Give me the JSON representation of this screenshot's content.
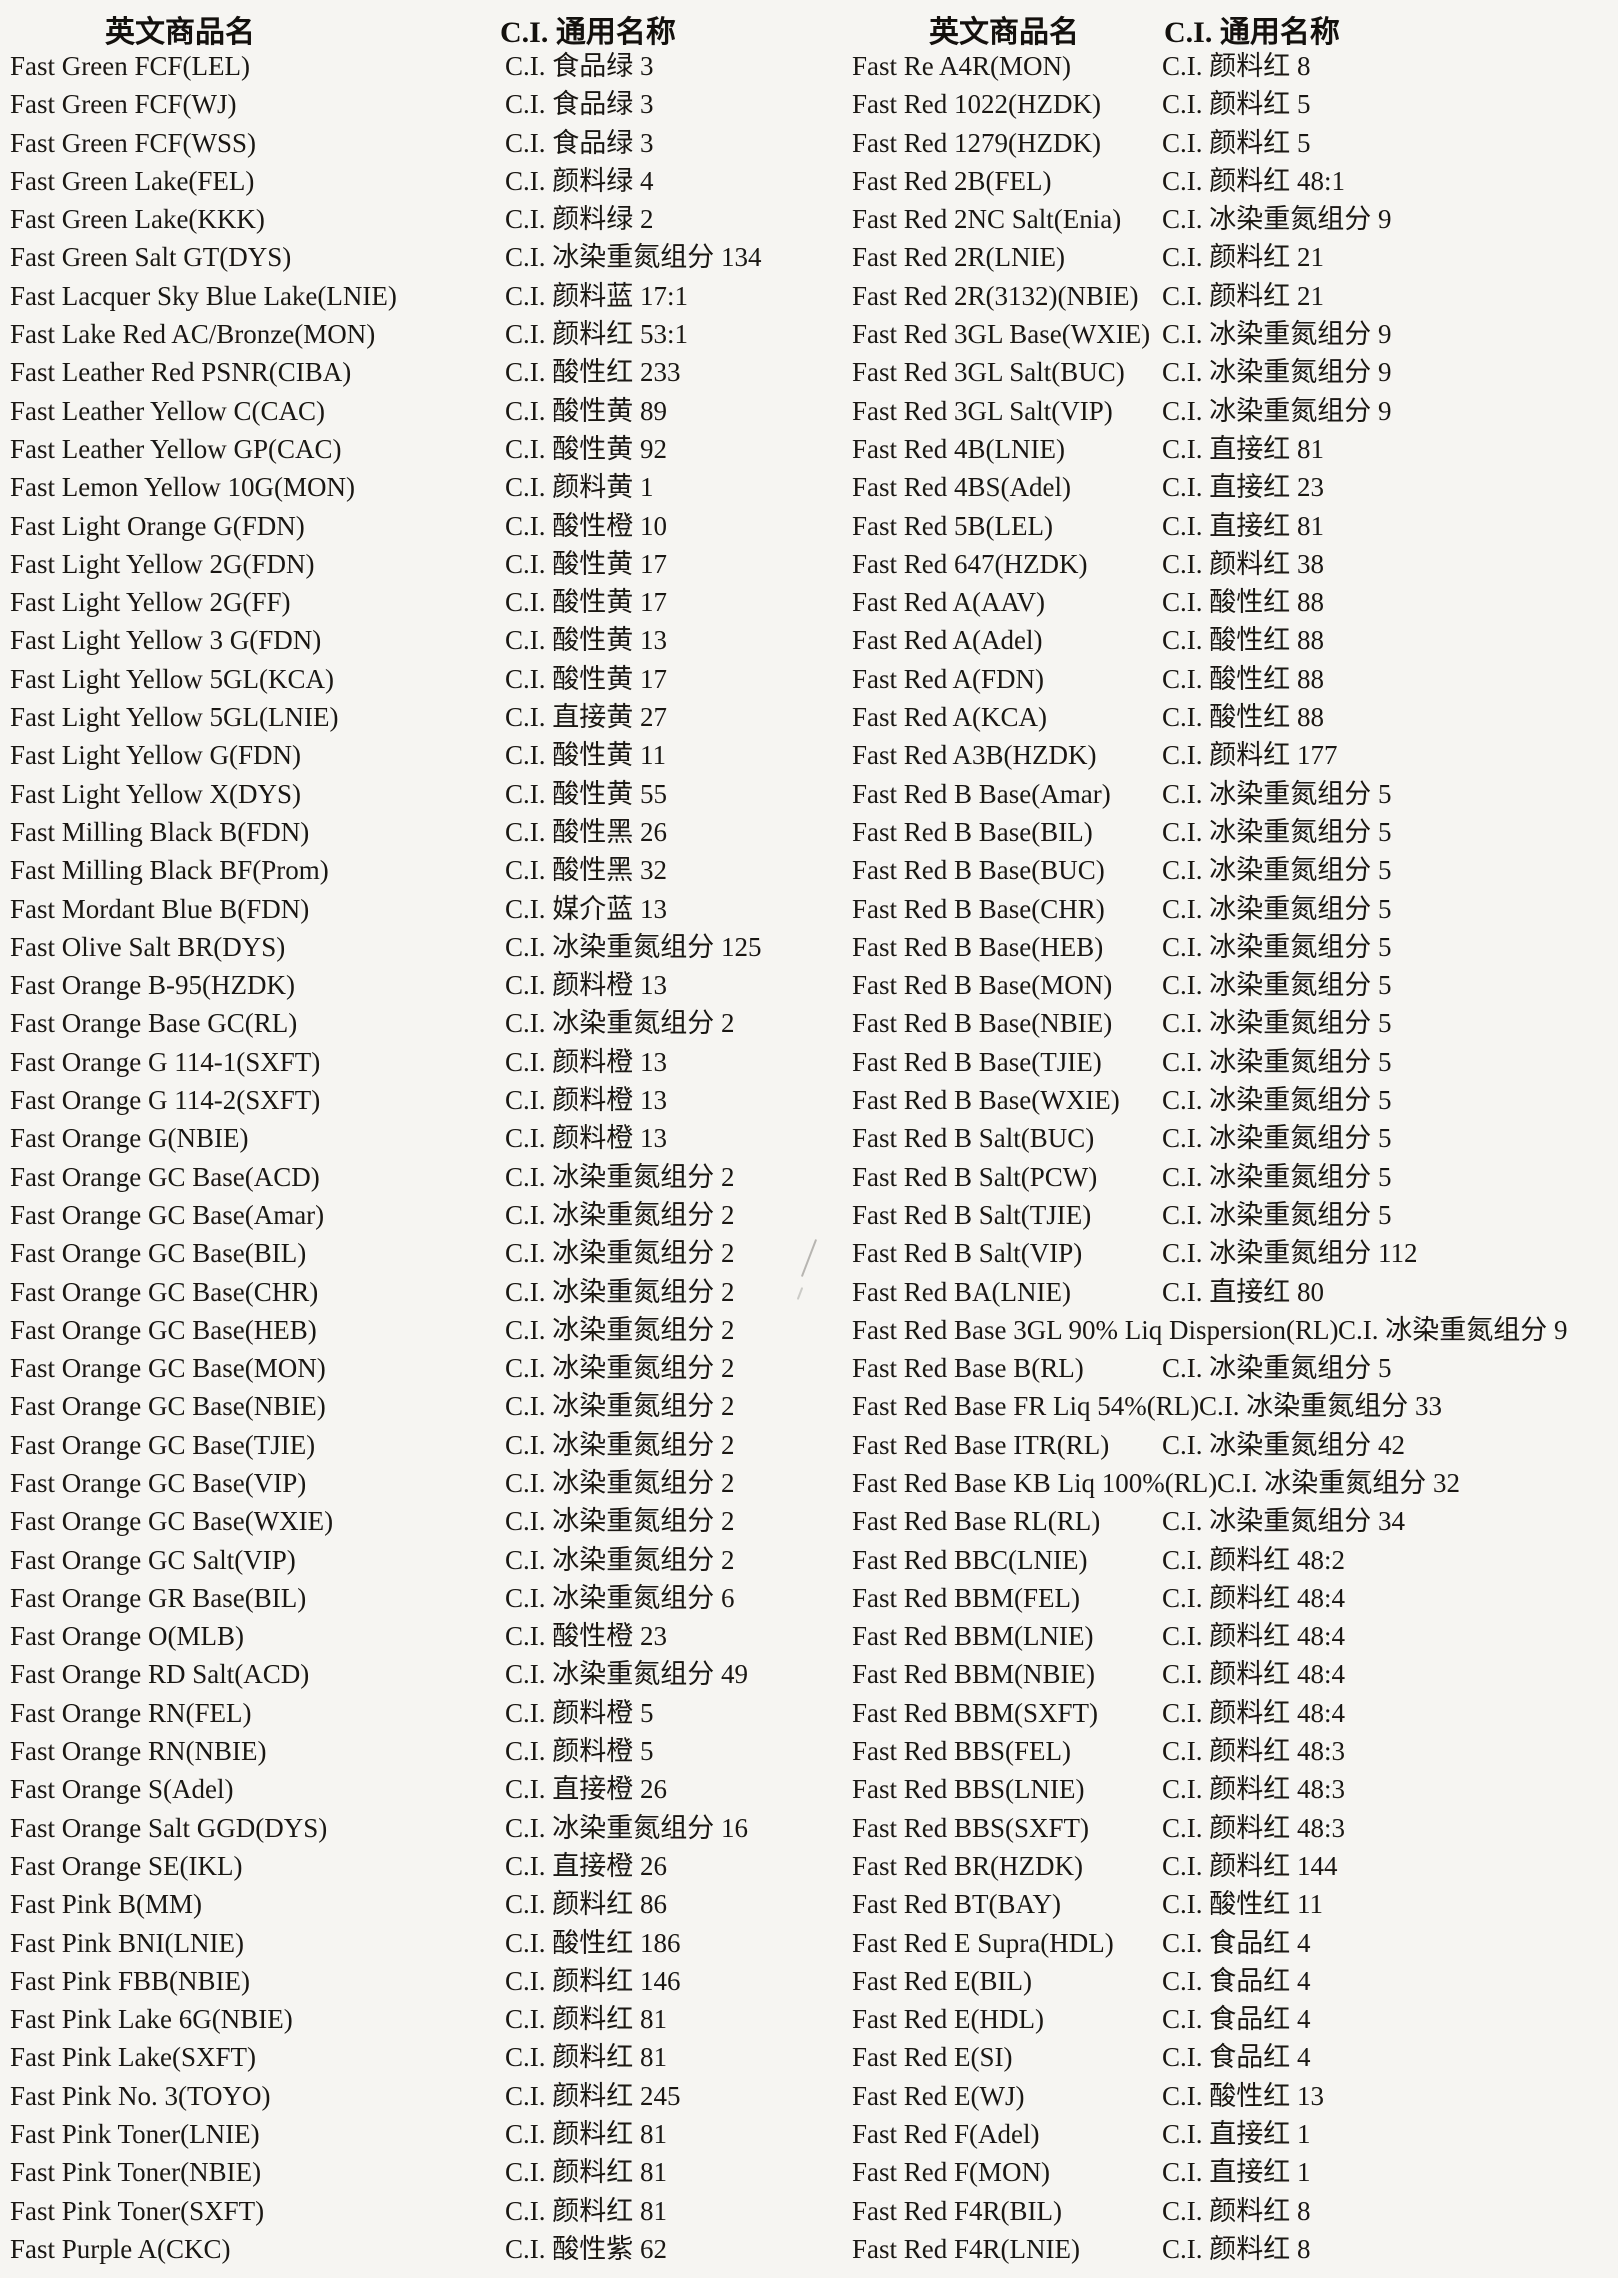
{
  "document": {
    "headers": {
      "english": "英文商品名",
      "ci": "C.I. 通用名称"
    },
    "left_rows": [
      {
        "name": "Fast Green FCF(LEL)",
        "ci": "C.I. 食品绿 3"
      },
      {
        "name": "Fast Green FCF(WJ)",
        "ci": "C.I. 食品绿 3"
      },
      {
        "name": "Fast Green FCF(WSS)",
        "ci": "C.I. 食品绿 3"
      },
      {
        "name": "Fast Green Lake(FEL)",
        "ci": "C.I. 颜料绿 4"
      },
      {
        "name": "Fast Green Lake(KKK)",
        "ci": "C.I. 颜料绿 2"
      },
      {
        "name": "Fast Green Salt GT(DYS)",
        "ci": "C.I. 冰染重氮组分 134"
      },
      {
        "name": "Fast Lacquer Sky Blue Lake(LNIE)",
        "ci": "C.I. 颜料蓝 17:1"
      },
      {
        "name": "Fast Lake Red AC/Bronze(MON)",
        "ci": "C.I. 颜料红 53:1"
      },
      {
        "name": "Fast Leather Red PSNR(CIBA)",
        "ci": "C.I. 酸性红 233"
      },
      {
        "name": "Fast Leather Yellow C(CAC)",
        "ci": "C.I. 酸性黄 89"
      },
      {
        "name": "Fast Leather Yellow GP(CAC)",
        "ci": "C.I. 酸性黄 92"
      },
      {
        "name": "Fast Lemon Yellow 10G(MON)",
        "ci": "C.I. 颜料黄 1"
      },
      {
        "name": "Fast Light Orange G(FDN)",
        "ci": "C.I. 酸性橙 10"
      },
      {
        "name": "Fast Light Yellow 2G(FDN)",
        "ci": "C.I. 酸性黄 17"
      },
      {
        "name": "Fast Light Yellow 2G(FF)",
        "ci": "C.I. 酸性黄 17"
      },
      {
        "name": "Fast Light Yellow 3 G(FDN)",
        "ci": "C.I. 酸性黄 13"
      },
      {
        "name": "Fast Light Yellow 5GL(KCA)",
        "ci": "C.I. 酸性黄 17"
      },
      {
        "name": "Fast Light Yellow 5GL(LNIE)",
        "ci": "C.I. 直接黄 27"
      },
      {
        "name": "Fast Light Yellow G(FDN)",
        "ci": "C.I. 酸性黄 11"
      },
      {
        "name": "Fast Light Yellow X(DYS)",
        "ci": "C.I. 酸性黄 55"
      },
      {
        "name": "Fast Milling Black B(FDN)",
        "ci": "C.I. 酸性黑 26"
      },
      {
        "name": "Fast Milling Black BF(Prom)",
        "ci": "C.I. 酸性黑 32"
      },
      {
        "name": "Fast Mordant Blue B(FDN)",
        "ci": "C.I. 媒介蓝 13"
      },
      {
        "name": "Fast Olive Salt BR(DYS)",
        "ci": "C.I. 冰染重氮组分 125"
      },
      {
        "name": "Fast Orange B-95(HZDK)",
        "ci": "C.I. 颜料橙 13"
      },
      {
        "name": "Fast Orange Base GC(RL)",
        "ci": "C.I. 冰染重氮组分 2"
      },
      {
        "name": "Fast Orange G 114-1(SXFT)",
        "ci": "C.I. 颜料橙 13"
      },
      {
        "name": "Fast Orange G 114-2(SXFT)",
        "ci": "C.I. 颜料橙 13"
      },
      {
        "name": "Fast Orange G(NBIE)",
        "ci": "C.I. 颜料橙 13"
      },
      {
        "name": "Fast Orange GC Base(ACD)",
        "ci": "C.I. 冰染重氮组分 2"
      },
      {
        "name": "Fast Orange GC Base(Amar)",
        "ci": "C.I. 冰染重氮组分 2"
      },
      {
        "name": "Fast Orange GC Base(BIL)",
        "ci": "C.I. 冰染重氮组分 2"
      },
      {
        "name": "Fast Orange GC Base(CHR)",
        "ci": "C.I. 冰染重氮组分 2"
      },
      {
        "name": "Fast Orange GC Base(HEB)",
        "ci": "C.I. 冰染重氮组分 2"
      },
      {
        "name": "Fast Orange GC Base(MON)",
        "ci": "C.I. 冰染重氮组分 2"
      },
      {
        "name": "Fast Orange GC Base(NBIE)",
        "ci": "C.I. 冰染重氮组分 2"
      },
      {
        "name": "Fast Orange GC Base(TJIE)",
        "ci": "C.I. 冰染重氮组分 2"
      },
      {
        "name": "Fast Orange GC Base(VIP)",
        "ci": "C.I. 冰染重氮组分 2"
      },
      {
        "name": "Fast Orange GC Base(WXIE)",
        "ci": "C.I. 冰染重氮组分 2"
      },
      {
        "name": "Fast Orange GC Salt(VIP)",
        "ci": "C.I. 冰染重氮组分 2"
      },
      {
        "name": "Fast Orange GR Base(BIL)",
        "ci": "C.I. 冰染重氮组分 6"
      },
      {
        "name": "Fast Orange O(MLB)",
        "ci": "C.I. 酸性橙 23"
      },
      {
        "name": "Fast Orange RD Salt(ACD)",
        "ci": "C.I. 冰染重氮组分 49"
      },
      {
        "name": "Fast Orange RN(FEL)",
        "ci": "C.I. 颜料橙 5"
      },
      {
        "name": "Fast Orange RN(NBIE)",
        "ci": "C.I. 颜料橙 5"
      },
      {
        "name": "Fast Orange S(Adel)",
        "ci": "C.I. 直接橙 26"
      },
      {
        "name": "Fast Orange Salt GGD(DYS)",
        "ci": "C.I. 冰染重氮组分 16"
      },
      {
        "name": "Fast Orange SE(IKL)",
        "ci": "C.I. 直接橙 26"
      },
      {
        "name": "Fast Pink B(MM)",
        "ci": "C.I. 颜料红 86"
      },
      {
        "name": "Fast Pink BNI(LNIE)",
        "ci": "C.I. 酸性红 186"
      },
      {
        "name": "Fast Pink FBB(NBIE)",
        "ci": "C.I. 颜料红 146"
      },
      {
        "name": "Fast Pink Lake 6G(NBIE)",
        "ci": "C.I. 颜料红 81"
      },
      {
        "name": "Fast Pink Lake(SXFT)",
        "ci": "C.I. 颜料红 81"
      },
      {
        "name": "Fast Pink No. 3(TOYO)",
        "ci": "C.I. 颜料红 245"
      },
      {
        "name": "Fast Pink Toner(LNIE)",
        "ci": "C.I. 颜料红 81"
      },
      {
        "name": "Fast Pink Toner(NBIE)",
        "ci": "C.I. 颜料红 81"
      },
      {
        "name": "Fast Pink Toner(SXFT)",
        "ci": "C.I. 颜料红 81"
      },
      {
        "name": "Fast Purple A(CKC)",
        "ci": "C.I. 酸性紫 62"
      }
    ],
    "right_rows": [
      {
        "name": "Fast Re A4R(MON)",
        "ci": "C.I. 颜料红 8"
      },
      {
        "name": "Fast Red 1022(HZDK)",
        "ci": "C.I. 颜料红 5"
      },
      {
        "name": "Fast Red 1279(HZDK)",
        "ci": "C.I. 颜料红 5"
      },
      {
        "name": "Fast Red 2B(FEL)",
        "ci": "C.I. 颜料红 48:1"
      },
      {
        "name": "Fast Red 2NC Salt(Enia)",
        "ci": "C.I. 冰染重氮组分 9"
      },
      {
        "name": "Fast Red 2R(LNIE)",
        "ci": "C.I. 颜料红 21"
      },
      {
        "name": "Fast Red 2R(3132)(NBIE)",
        "ci": "C.I. 颜料红 21"
      },
      {
        "name": "Fast Red 3GL Base(WXIE)",
        "ci": "C.I. 冰染重氮组分 9"
      },
      {
        "name": "Fast Red 3GL Salt(BUC)",
        "ci": "C.I. 冰染重氮组分 9"
      },
      {
        "name": "Fast Red 3GL Salt(VIP)",
        "ci": "C.I. 冰染重氮组分 9"
      },
      {
        "name": "Fast Red 4B(LNIE)",
        "ci": "C.I. 直接红 81"
      },
      {
        "name": "Fast Red 4BS(Adel)",
        "ci": "C.I. 直接红 23"
      },
      {
        "name": "Fast Red 5B(LEL)",
        "ci": "C.I. 直接红 81"
      },
      {
        "name": "Fast Red 647(HZDK)",
        "ci": "C.I. 颜料红 38"
      },
      {
        "name": "Fast Red A(AAV)",
        "ci": "C.I. 酸性红 88"
      },
      {
        "name": "Fast Red A(Adel)",
        "ci": "C.I. 酸性红 88"
      },
      {
        "name": "Fast Red A(FDN)",
        "ci": "C.I. 酸性红 88"
      },
      {
        "name": "Fast Red A(KCA)",
        "ci": "C.I. 酸性红 88"
      },
      {
        "name": "Fast Red A3B(HZDK)",
        "ci": "C.I. 颜料红 177"
      },
      {
        "name": "Fast Red B Base(Amar)",
        "ci": "C.I. 冰染重氮组分 5"
      },
      {
        "name": "Fast Red B Base(BIL)",
        "ci": "C.I. 冰染重氮组分 5"
      },
      {
        "name": "Fast Red B Base(BUC)",
        "ci": "C.I. 冰染重氮组分 5"
      },
      {
        "name": "Fast Red B Base(CHR)",
        "ci": "C.I. 冰染重氮组分 5"
      },
      {
        "name": "Fast Red B Base(HEB)",
        "ci": "C.I. 冰染重氮组分 5"
      },
      {
        "name": "Fast Red B Base(MON)",
        "ci": "C.I. 冰染重氮组分 5"
      },
      {
        "name": "Fast Red B Base(NBIE)",
        "ci": "C.I. 冰染重氮组分 5"
      },
      {
        "name": "Fast Red B Base(TJIE)",
        "ci": "C.I. 冰染重氮组分 5"
      },
      {
        "name": "Fast Red B Base(WXIE)",
        "ci": "C.I. 冰染重氮组分 5"
      },
      {
        "name": "Fast Red B Salt(BUC)",
        "ci": "C.I. 冰染重氮组分 5"
      },
      {
        "name": "Fast Red B Salt(PCW)",
        "ci": "C.I. 冰染重氮组分 5"
      },
      {
        "name": "Fast Red B Salt(TJIE)",
        "ci": "C.I. 冰染重氮组分 5"
      },
      {
        "name": "Fast Red B Salt(VIP)",
        "ci": "C.I. 冰染重氮组分 112"
      },
      {
        "name": "Fast Red BA(LNIE)",
        "ci": "C.I. 直接红 80"
      },
      {
        "name": "Fast Red Base 3GL 90% Liq Dispersion(RL)",
        "ci": "C.I. 冰染重氮组分 9"
      },
      {
        "name": "Fast Red Base B(RL)",
        "ci": "C.I. 冰染重氮组分 5"
      },
      {
        "name": "Fast Red Base FR Liq 54%(RL)",
        "ci": "C.I. 冰染重氮组分 33"
      },
      {
        "name": "Fast Red Base ITR(RL)",
        "ci": "C.I. 冰染重氮组分 42"
      },
      {
        "name": "Fast Red Base KB Liq 100%(RL)",
        "ci": "C.I. 冰染重氮组分 32"
      },
      {
        "name": "Fast Red Base RL(RL)",
        "ci": "C.I. 冰染重氮组分 34"
      },
      {
        "name": "Fast Red BBC(LNIE)",
        "ci": "C.I. 颜料红 48:2"
      },
      {
        "name": "Fast Red BBM(FEL)",
        "ci": "C.I. 颜料红 48:4"
      },
      {
        "name": "Fast Red BBM(LNIE)",
        "ci": "C.I. 颜料红 48:4"
      },
      {
        "name": "Fast Red BBM(NBIE)",
        "ci": "C.I. 颜料红 48:4"
      },
      {
        "name": "Fast Red BBM(SXFT)",
        "ci": "C.I. 颜料红 48:4"
      },
      {
        "name": "Fast Red BBS(FEL)",
        "ci": "C.I. 颜料红 48:3"
      },
      {
        "name": "Fast Red BBS(LNIE)",
        "ci": "C.I. 颜料红 48:3"
      },
      {
        "name": "Fast Red BBS(SXFT)",
        "ci": "C.I. 颜料红 48:3"
      },
      {
        "name": "Fast Red BR(HZDK)",
        "ci": "C.I. 颜料红 144"
      },
      {
        "name": "Fast Red BT(BAY)",
        "ci": "C.I. 酸性红 11"
      },
      {
        "name": "Fast Red E Supra(HDL)",
        "ci": "C.I. 食品红 4"
      },
      {
        "name": "Fast Red E(BIL)",
        "ci": "C.I. 食品红 4"
      },
      {
        "name": "Fast Red E(HDL)",
        "ci": "C.I. 食品红 4"
      },
      {
        "name": "Fast Red E(SI)",
        "ci": "C.I. 食品红 4"
      },
      {
        "name": "Fast Red E(WJ)",
        "ci": "C.I. 酸性红 13"
      },
      {
        "name": "Fast Red F(Adel)",
        "ci": "C.I. 直接红 1"
      },
      {
        "name": "Fast Red F(MON)",
        "ci": "C.I. 直接红 1"
      },
      {
        "name": "Fast Red F4R(BIL)",
        "ci": "C.I. 颜料红 8"
      },
      {
        "name": "Fast Red F4R(LNIE)",
        "ci": "C.I. 颜料红 8"
      }
    ]
  },
  "colors": {
    "background": "#f6f5f2",
    "text": "#1a1713"
  }
}
